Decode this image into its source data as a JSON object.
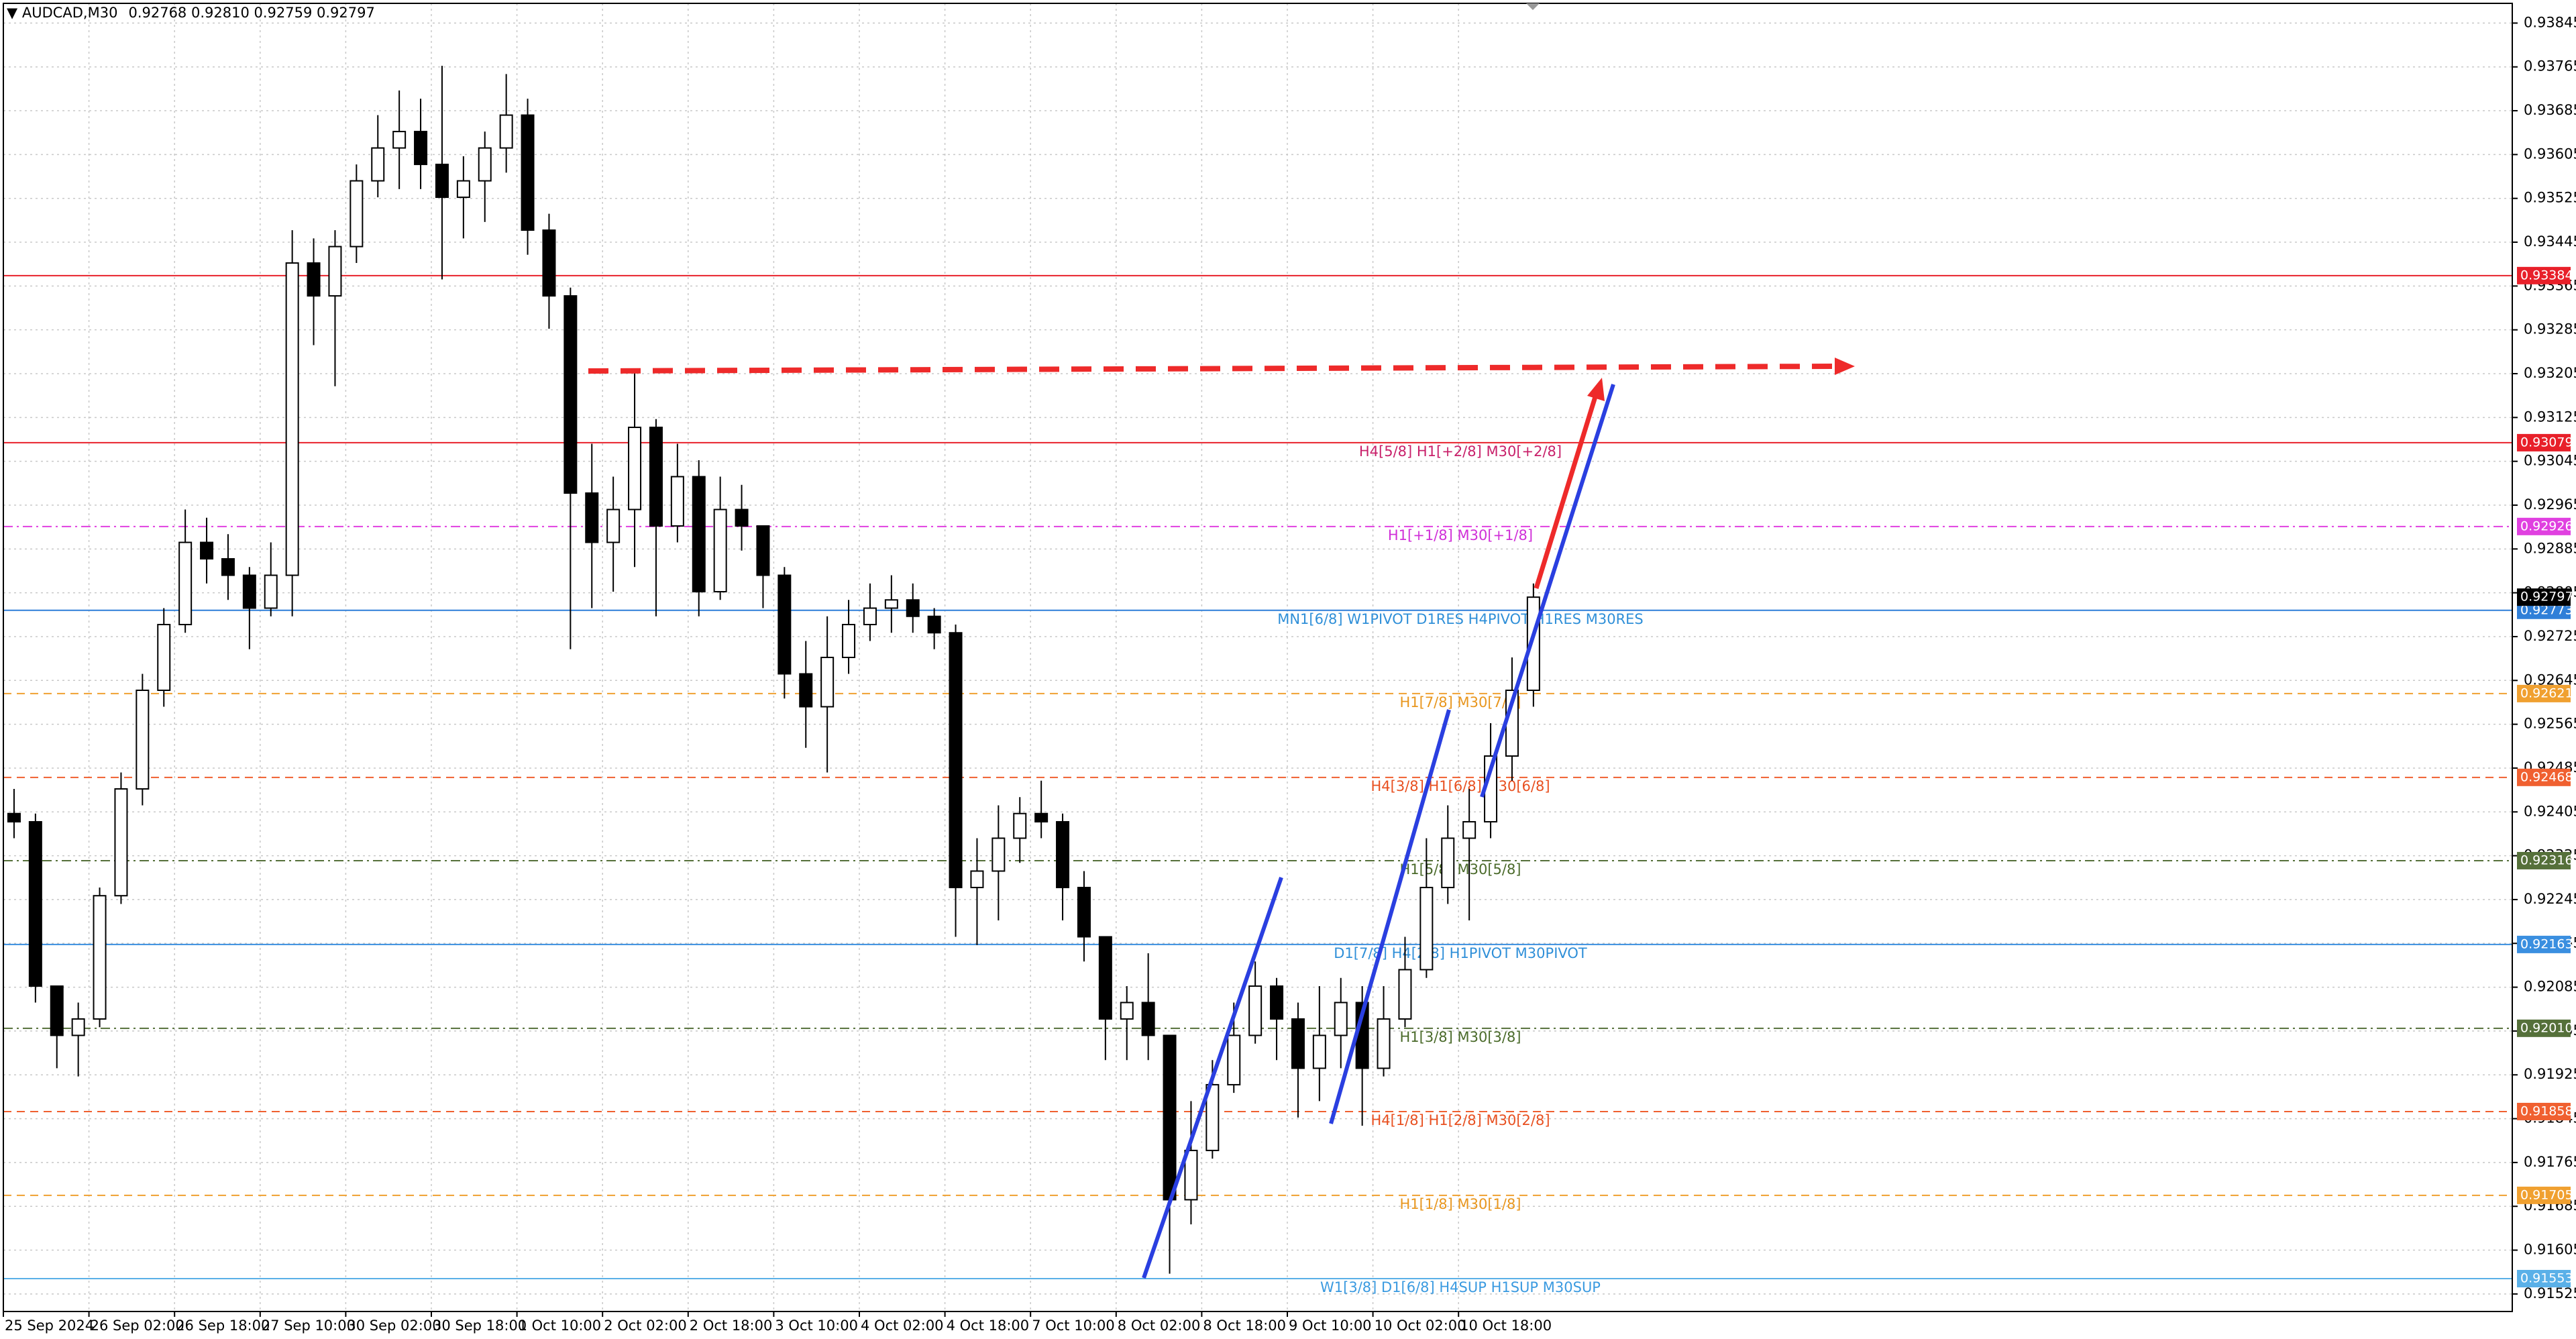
{
  "chart_data": {
    "type": "candlestick",
    "title": "AUDCAD,M30",
    "quote": "0.92768 0.92810 0.92759 0.92797",
    "x_labels": [
      "25 Sep 2024",
      "26 Sep 02:00",
      "26 Sep 18:00",
      "27 Sep 10:00",
      "30 Sep 02:00",
      "30 Sep 18:00",
      "1 Oct 10:00",
      "2 Oct 02:00",
      "2 Oct 18:00",
      "3 Oct 10:00",
      "4 Oct 02:00",
      "4 Oct 18:00",
      "7 Oct 10:00",
      "8 Oct 02:00",
      "8 Oct 18:00",
      "9 Oct 10:00",
      "10 Oct 02:00",
      "10 Oct 18:00"
    ],
    "candles": [
      [
        0.92402,
        0.92447,
        0.92357,
        0.92387
      ],
      [
        0.92387,
        0.92402,
        0.92057,
        0.92087
      ],
      [
        0.92087,
        0.92087,
        0.91937,
        0.91997
      ],
      [
        0.91997,
        0.92057,
        0.91922,
        0.92027
      ],
      [
        0.92027,
        0.92267,
        0.92012,
        0.92252
      ],
      [
        0.92252,
        0.92477,
        0.92237,
        0.92447
      ],
      [
        0.92447,
        0.92657,
        0.92417,
        0.92627
      ],
      [
        0.92627,
        0.92777,
        0.92597,
        0.92747
      ],
      [
        0.92747,
        0.92957,
        0.92732,
        0.92897
      ],
      [
        0.92897,
        0.92942,
        0.92822,
        0.92867
      ],
      [
        0.92867,
        0.92912,
        0.92792,
        0.92837
      ],
      [
        0.92837,
        0.92852,
        0.92702,
        0.92777
      ],
      [
        0.92777,
        0.92897,
        0.92762,
        0.92837
      ],
      [
        0.92837,
        0.93467,
        0.92762,
        0.93407
      ],
      [
        0.93407,
        0.93452,
        0.93257,
        0.93347
      ],
      [
        0.93347,
        0.93467,
        0.93182,
        0.93437
      ],
      [
        0.93437,
        0.93587,
        0.93407,
        0.93557
      ],
      [
        0.93557,
        0.93677,
        0.93527,
        0.93617
      ],
      [
        0.93617,
        0.93722,
        0.93542,
        0.93647
      ],
      [
        0.93647,
        0.93707,
        0.93542,
        0.93587
      ],
      [
        0.93587,
        0.93767,
        0.93377,
        0.93527
      ],
      [
        0.93527,
        0.93602,
        0.93452,
        0.93557
      ],
      [
        0.93557,
        0.93647,
        0.93482,
        0.93617
      ],
      [
        0.93617,
        0.93752,
        0.93572,
        0.93677
      ],
      [
        0.93677,
        0.93707,
        0.93422,
        0.93467
      ],
      [
        0.93467,
        0.93497,
        0.93287,
        0.93347
      ],
      [
        0.93347,
        0.93362,
        0.92702,
        0.92987
      ],
      [
        0.92987,
        0.93077,
        0.92777,
        0.92897
      ],
      [
        0.92897,
        0.93017,
        0.92807,
        0.92957
      ],
      [
        0.92957,
        0.93212,
        0.92852,
        0.93107
      ],
      [
        0.93107,
        0.93122,
        0.92762,
        0.92927
      ],
      [
        0.92927,
        0.93077,
        0.92897,
        0.93017
      ],
      [
        0.93017,
        0.93047,
        0.92762,
        0.92807
      ],
      [
        0.92807,
        0.93017,
        0.92792,
        0.92957
      ],
      [
        0.92957,
        0.93002,
        0.92882,
        0.92927
      ],
      [
        0.92927,
        0.92927,
        0.92777,
        0.92837
      ],
      [
        0.92837,
        0.92852,
        0.92612,
        0.92657
      ],
      [
        0.92657,
        0.92717,
        0.92522,
        0.92597
      ],
      [
        0.92597,
        0.92762,
        0.92477,
        0.92687
      ],
      [
        0.92687,
        0.92792,
        0.92657,
        0.92747
      ],
      [
        0.92747,
        0.92822,
        0.92717,
        0.92777
      ],
      [
        0.92777,
        0.92837,
        0.92732,
        0.92792
      ],
      [
        0.92792,
        0.92822,
        0.92732,
        0.92762
      ],
      [
        0.92762,
        0.92777,
        0.92702,
        0.92732
      ],
      [
        0.92732,
        0.92747,
        0.92177,
        0.92267
      ],
      [
        0.92267,
        0.92357,
        0.92162,
        0.92297
      ],
      [
        0.92297,
        0.92417,
        0.92207,
        0.92357
      ],
      [
        0.92357,
        0.92432,
        0.92312,
        0.92402
      ],
      [
        0.92402,
        0.92462,
        0.92357,
        0.92387
      ],
      [
        0.92387,
        0.92402,
        0.92207,
        0.92267
      ],
      [
        0.92267,
        0.92297,
        0.92132,
        0.92177
      ],
      [
        0.92177,
        0.92177,
        0.91952,
        0.92027
      ],
      [
        0.92027,
        0.92087,
        0.91952,
        0.92057
      ],
      [
        0.92057,
        0.92147,
        0.91952,
        0.91997
      ],
      [
        0.91997,
        0.91997,
        0.91562,
        0.91697
      ],
      [
        0.91697,
        0.91877,
        0.91652,
        0.91787
      ],
      [
        0.91787,
        0.91952,
        0.91772,
        0.91907
      ],
      [
        0.91907,
        0.92057,
        0.91892,
        0.91997
      ],
      [
        0.91997,
        0.92132,
        0.91982,
        0.92087
      ],
      [
        0.92087,
        0.92102,
        0.91952,
        0.92027
      ],
      [
        0.92027,
        0.92057,
        0.91847,
        0.91937
      ],
      [
        0.91937,
        0.92087,
        0.91877,
        0.91997
      ],
      [
        0.91997,
        0.92102,
        0.91937,
        0.92057
      ],
      [
        0.92057,
        0.92087,
        0.91832,
        0.91937
      ],
      [
        0.91937,
        0.92087,
        0.91922,
        0.92027
      ],
      [
        0.92027,
        0.92177,
        0.92012,
        0.92117
      ],
      [
        0.92117,
        0.92357,
        0.92102,
        0.92267
      ],
      [
        0.92267,
        0.92417,
        0.92237,
        0.92357
      ],
      [
        0.92357,
        0.92447,
        0.92207,
        0.92387
      ],
      [
        0.92387,
        0.92567,
        0.92357,
        0.92507
      ],
      [
        0.92507,
        0.92687,
        0.92462,
        0.92627
      ],
      [
        0.92627,
        0.92822,
        0.92597,
        0.92797
      ]
    ],
    "up_color": "#ffffff",
    "down_color": "#000000",
    "ylim": [
      0.91493,
      0.93881
    ],
    "yticks": [
      0.91525,
      0.91605,
      0.91685,
      0.91765,
      0.91845,
      0.91925,
      0.92005,
      0.92085,
      0.92165,
      0.92245,
      0.92325,
      0.92405,
      0.92485,
      0.92565,
      0.92645,
      0.92725,
      0.92805,
      0.92885,
      0.92965,
      0.93045,
      0.93125,
      0.93205,
      0.93285,
      0.93365,
      0.93445,
      0.93525,
      0.93605,
      0.93685,
      0.93765,
      0.93845
    ],
    "grid": true,
    "current_price": 0.92797,
    "levels": [
      {
        "price": 0.93384,
        "color": "#e8202a",
        "style": "solid"
      },
      {
        "price": 0.93079,
        "color": "#e8202a",
        "style": "solid",
        "label": "H4[5/8] H1[+2/8] M30[+2/8]",
        "label_color": "#c8206a"
      },
      {
        "price": 0.92926,
        "color": "#e040e0",
        "style": "dashdot",
        "label": "H1[+1/8] M30[+1/8]",
        "label_color": "#d030d8"
      },
      {
        "price": 0.92773,
        "color": "#2f7fd8",
        "style": "solid",
        "label": "MN1[6/8] W1PIVOT D1RES H4PIVOT H1RES M30RES",
        "label_color": "#2f8fd8"
      },
      {
        "price": 0.92621,
        "color": "#f0a030",
        "style": "dashed",
        "label": "H1[7/8] M30[7/8]",
        "label_color": "#e8961e"
      },
      {
        "price": 0.92468,
        "color": "#f06030",
        "style": "dashed",
        "label": "H4[3/8] H1[6/8] M30[6/8]",
        "label_color": "#e85020"
      },
      {
        "price": 0.92316,
        "color": "#55703a",
        "style": "dashdot",
        "label": "H1[5/8] M30[5/8]",
        "label_color": "#4a6a2a"
      },
      {
        "price": 0.92163,
        "color": "#3a8fe0",
        "style": "solid",
        "label": "D1[7/8] H4[2/8] H1PIVOT M30PIVOT",
        "label_color": "#2f8fd8"
      },
      {
        "price": 0.9201,
        "price_label": "0.92010",
        "color": "#55703a",
        "style": "dashdot",
        "label": "H1[3/8] M30[3/8]",
        "label_color": "#4a6a2a"
      },
      {
        "price": 0.91858,
        "color": "#f06030",
        "style": "dashed",
        "label": "H4[1/8] H1[2/8] M30[2/8]",
        "label_color": "#e85020"
      },
      {
        "price": 0.91705,
        "color": "#f0a030",
        "style": "dashed",
        "label": "H1[1/8] M30[1/8]",
        "label_color": "#e8961e"
      },
      {
        "price": 0.91553,
        "color": "#5ab0e8",
        "style": "solid",
        "label": "W1[3/8] D1[6/8] H4SUP H1SUP M30SUP",
        "label_color": "#3a9ae0"
      }
    ]
  }
}
